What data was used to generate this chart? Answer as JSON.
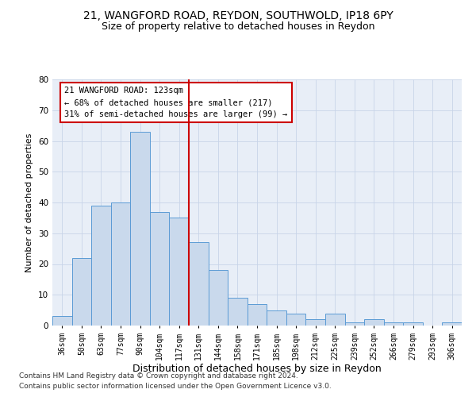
{
  "title_line1": "21, WANGFORD ROAD, REYDON, SOUTHWOLD, IP18 6PY",
  "title_line2": "Size of property relative to detached houses in Reydon",
  "xlabel": "Distribution of detached houses by size in Reydon",
  "ylabel": "Number of detached properties",
  "footer_line1": "Contains HM Land Registry data © Crown copyright and database right 2024.",
  "footer_line2": "Contains public sector information licensed under the Open Government Licence v3.0.",
  "annotation_line1": "21 WANGFORD ROAD: 123sqm",
  "annotation_line2": "← 68% of detached houses are smaller (217)",
  "annotation_line3": "31% of semi-detached houses are larger (99) →",
  "bar_labels": [
    "36sqm",
    "50sqm",
    "63sqm",
    "77sqm",
    "90sqm",
    "104sqm",
    "117sqm",
    "131sqm",
    "144sqm",
    "158sqm",
    "171sqm",
    "185sqm",
    "198sqm",
    "212sqm",
    "225sqm",
    "239sqm",
    "252sqm",
    "266sqm",
    "279sqm",
    "293sqm",
    "306sqm"
  ],
  "bar_values": [
    3,
    22,
    39,
    40,
    63,
    37,
    35,
    27,
    18,
    9,
    7,
    5,
    4,
    2,
    4,
    1,
    2,
    1,
    1,
    0,
    1
  ],
  "bar_color": "#c9d9ec",
  "bar_edge_color": "#5b9bd5",
  "vline_x": 6.5,
  "vline_color": "#cc0000",
  "ylim": [
    0,
    80
  ],
  "yticks": [
    0,
    10,
    20,
    30,
    40,
    50,
    60,
    70,
    80
  ],
  "grid_color": "#c8d4e8",
  "bg_color": "#e8eef7",
  "annotation_box_edge": "#cc0000",
  "title1_fontsize": 10,
  "title2_fontsize": 9,
  "xlabel_fontsize": 9,
  "ylabel_fontsize": 8,
  "tick_fontsize": 7,
  "annotation_fontsize": 7.5,
  "footer_fontsize": 6.5
}
